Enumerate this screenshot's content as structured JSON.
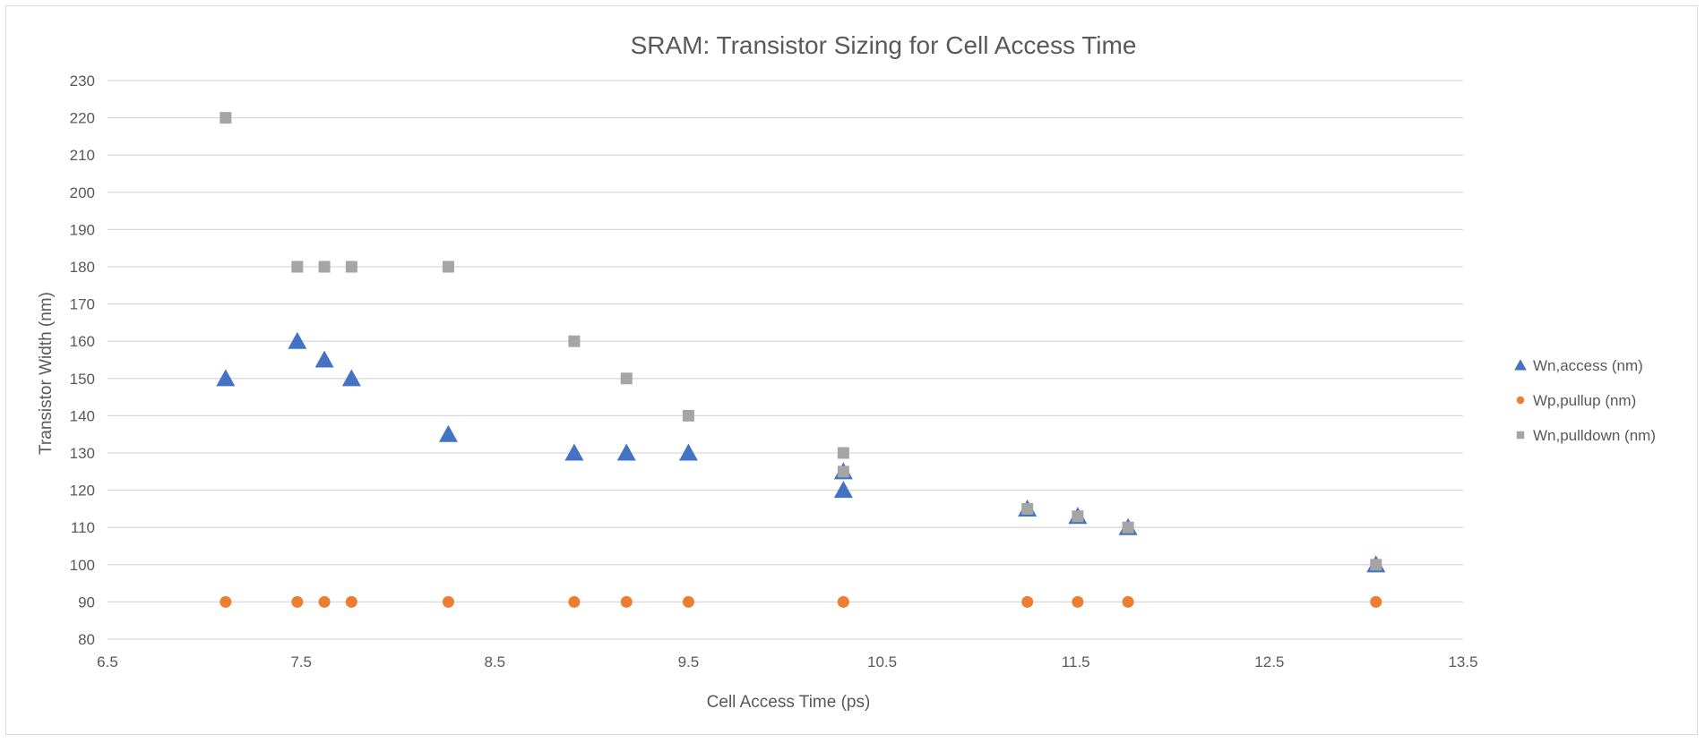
{
  "chart_data": {
    "type": "scatter",
    "title": "SRAM: Transistor Sizing for Cell Access Time",
    "xlabel": "Cell Access Time (ps)",
    "ylabel": "Transistor Width (nm)",
    "xlim": [
      6.5,
      13.5
    ],
    "ylim": [
      80,
      230
    ],
    "x_ticks": [
      6.5,
      7.5,
      8.5,
      9.5,
      10.5,
      11.5,
      12.5,
      13.5
    ],
    "y_ticks": [
      80,
      90,
      100,
      110,
      120,
      130,
      140,
      150,
      160,
      170,
      180,
      190,
      200,
      210,
      220,
      230
    ],
    "grid": "horizontal",
    "legend_position": "right",
    "series": [
      {
        "name": "Wn,access (nm)",
        "marker": "triangle",
        "color": "#4472C4",
        "points": [
          [
            7.11,
            150
          ],
          [
            7.48,
            160
          ],
          [
            7.62,
            155
          ],
          [
            7.76,
            150
          ],
          [
            8.26,
            135
          ],
          [
            8.91,
            130
          ],
          [
            9.18,
            130
          ],
          [
            9.5,
            130
          ],
          [
            10.3,
            125
          ],
          [
            10.3,
            120
          ],
          [
            11.25,
            115
          ],
          [
            11.51,
            113
          ],
          [
            11.77,
            110
          ],
          [
            13.05,
            100
          ]
        ]
      },
      {
        "name": "Wp,pullup (nm)",
        "marker": "circle",
        "color": "#ED7D31",
        "points": [
          [
            7.11,
            90
          ],
          [
            7.48,
            90
          ],
          [
            7.62,
            90
          ],
          [
            7.76,
            90
          ],
          [
            8.26,
            90
          ],
          [
            8.91,
            90
          ],
          [
            9.18,
            90
          ],
          [
            9.5,
            90
          ],
          [
            10.3,
            90
          ],
          [
            11.25,
            90
          ],
          [
            11.51,
            90
          ],
          [
            11.77,
            90
          ],
          [
            13.05,
            90
          ]
        ]
      },
      {
        "name": "Wn,pulldown (nm)",
        "marker": "square",
        "color": "#A5A5A5",
        "points": [
          [
            7.11,
            220
          ],
          [
            7.48,
            180
          ],
          [
            7.62,
            180
          ],
          [
            7.76,
            180
          ],
          [
            8.26,
            180
          ],
          [
            8.91,
            160
          ],
          [
            9.18,
            150
          ],
          [
            9.5,
            140
          ],
          [
            10.3,
            130
          ],
          [
            10.3,
            125
          ],
          [
            11.25,
            115
          ],
          [
            11.51,
            113
          ],
          [
            11.77,
            110
          ],
          [
            13.05,
            100
          ]
        ]
      }
    ]
  },
  "colors": {
    "grid": "#d9d9d9",
    "axis_text": "#595959",
    "title_text": "#595959"
  }
}
